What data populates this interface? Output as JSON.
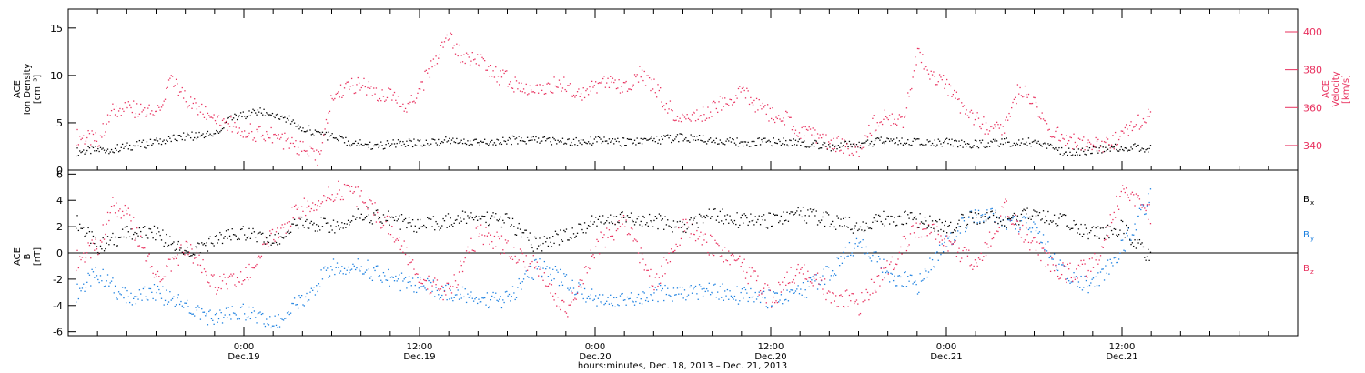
{
  "colors": {
    "black": "#000000",
    "red": "#e8305e",
    "blue": "#1a7fe0"
  },
  "chart_data": [
    {
      "type": "scatter",
      "panel": "top",
      "left_axis": {
        "title_lines": [
          "ACE",
          "Ion Density",
          "[cm⁻³]"
        ],
        "ylim": [
          0,
          17
        ],
        "ticks": [
          0,
          5,
          10,
          15
        ]
      },
      "right_axis": {
        "title_lines": [
          "ACE",
          "Velocity",
          "[km/s]"
        ],
        "ylim": [
          327,
          412
        ],
        "ticks": [
          340,
          360,
          380,
          400
        ],
        "color": "#e8305e"
      },
      "series": [
        {
          "color": "#000000",
          "axis": "left",
          "x": [
            -11.5,
            -9,
            -6,
            -4,
            -2,
            -1,
            0,
            1,
            2,
            3,
            4,
            5,
            6,
            7,
            8,
            9,
            10,
            12,
            14,
            16,
            18,
            20,
            22,
            24,
            26,
            28,
            30,
            32,
            34,
            36,
            38,
            40,
            42,
            44,
            46,
            48,
            50,
            52,
            54,
            56,
            58,
            60,
            62
          ],
          "y": [
            2.0,
            2.3,
            3.0,
            3.6,
            3.8,
            5.5,
            5.8,
            6.2,
            6.0,
            5.5,
            4.5,
            4.0,
            3.5,
            3.0,
            2.8,
            2.6,
            2.8,
            3.0,
            3.2,
            3.0,
            3.2,
            3.3,
            3.0,
            3.2,
            3.0,
            3.2,
            3.5,
            3.2,
            3.0,
            3.0,
            3.0,
            2.5,
            2.8,
            3.2,
            3.0,
            3.0,
            2.8,
            3.0,
            3.0,
            2.0,
            2.2,
            2.5,
            2.4
          ]
        },
        {
          "color": "#e8305e",
          "axis": "right",
          "x": [
            -11.5,
            -10,
            -9,
            -8,
            -6,
            -5,
            -4,
            -3,
            -2,
            -1,
            0,
            2,
            4,
            5,
            6,
            7,
            8,
            9,
            10,
            11,
            12,
            13,
            14,
            15,
            16,
            17,
            18,
            19,
            20,
            21,
            22,
            23,
            24,
            25,
            26,
            27,
            28,
            29,
            30,
            31,
            32,
            33,
            34,
            35,
            36,
            37,
            38,
            39,
            40,
            41,
            42,
            43,
            44,
            45,
            46,
            47,
            48,
            49,
            50,
            51,
            52,
            53,
            54,
            55,
            56,
            57,
            58,
            59,
            60,
            61,
            62
          ],
          "y": [
            345,
            343,
            358,
            360,
            357,
            375,
            364,
            358,
            356,
            352,
            348,
            345,
            338,
            333,
            365,
            372,
            372,
            368,
            368,
            360,
            370,
            385,
            398,
            385,
            386,
            378,
            375,
            370,
            372,
            372,
            372,
            368,
            372,
            375,
            370,
            378,
            372,
            360,
            354,
            356,
            360,
            365,
            368,
            362,
            356,
            355,
            348,
            345,
            342,
            340,
            338,
            352,
            356,
            352,
            390,
            376,
            372,
            360,
            354,
            348,
            350,
            372,
            362,
            350,
            342,
            343,
            340,
            340,
            346,
            352,
            356
          ]
        }
      ]
    },
    {
      "type": "scatter",
      "panel": "bottom",
      "left_axis": {
        "title_lines": [
          "ACE",
          "B",
          "[nT]"
        ],
        "ylim": [
          -6.3,
          6.3
        ],
        "ticks": [
          -6,
          -4,
          -2,
          0,
          2,
          4,
          6
        ]
      },
      "series": [
        {
          "name": "Bx",
          "color": "#000000",
          "x": [
            -11.5,
            -10,
            -8,
            -6,
            -4,
            -2,
            0,
            2,
            4,
            6,
            8,
            10,
            12,
            14,
            16,
            18,
            20,
            22,
            24,
            26,
            28,
            30,
            32,
            34,
            36,
            38,
            40,
            42,
            44,
            46,
            48,
            50,
            52,
            54,
            56,
            58,
            60,
            62
          ],
          "y": [
            2.5,
            0.5,
            1.5,
            1.5,
            0.0,
            1.0,
            1.5,
            0.8,
            2.5,
            2.0,
            3.0,
            2.6,
            2.0,
            2.5,
            2.8,
            2.5,
            0.5,
            1.5,
            2.5,
            2.8,
            2.5,
            2.0,
            3.0,
            2.5,
            2.5,
            3.0,
            2.5,
            2.0,
            2.8,
            2.5,
            2.0,
            2.8,
            2.5,
            3.0,
            2.5,
            1.5,
            2.0,
            -0.5
          ]
        },
        {
          "name": "By",
          "color": "#1a7fe0",
          "x": [
            -11.5,
            -10,
            -8,
            -6,
            -4,
            -2,
            0,
            2,
            4,
            6,
            8,
            10,
            12,
            14,
            16,
            18,
            20,
            22,
            24,
            26,
            28,
            30,
            32,
            34,
            36,
            38,
            40,
            42,
            44,
            46,
            48,
            50,
            52,
            54,
            56,
            58,
            60,
            62
          ],
          "y": [
            -3.0,
            -1.5,
            -3.5,
            -3.0,
            -4.0,
            -5.0,
            -4.5,
            -5.5,
            -3.5,
            -1.0,
            -1.0,
            -2.0,
            -2.5,
            -3.0,
            -3.5,
            -3.5,
            -1.0,
            -2.0,
            -3.5,
            -3.5,
            -3.0,
            -3.0,
            -2.8,
            -3.2,
            -3.5,
            -3.0,
            -1.5,
            1.0,
            -1.5,
            -2.5,
            1.0,
            3.0,
            2.5,
            2.0,
            -1.5,
            -2.5,
            0.5,
            4.5
          ]
        },
        {
          "name": "Bz",
          "color": "#e8305e",
          "x": [
            -11.5,
            -10,
            -9,
            -8,
            -6,
            -4,
            -2,
            0,
            2,
            4,
            6,
            7,
            8,
            10,
            12,
            14,
            16,
            18,
            20,
            22,
            24,
            26,
            28,
            30,
            32,
            34,
            36,
            38,
            40,
            42,
            44,
            46,
            48,
            50,
            52,
            54,
            56,
            58,
            60,
            62
          ],
          "y": [
            -0.5,
            0.5,
            3.5,
            3.0,
            -2.0,
            0.5,
            -2.5,
            -2.0,
            1.5,
            3.5,
            4.5,
            5.0,
            4.0,
            2.0,
            -2.0,
            -3.0,
            1.5,
            0.5,
            -1.0,
            -4.5,
            0.5,
            2.5,
            -2.5,
            2.0,
            0.5,
            -1.0,
            -3.5,
            -1.0,
            -3.0,
            -4.0,
            -1.0,
            2.0,
            1.0,
            -1.0,
            3.5,
            0.5,
            -1.5,
            -1.0,
            4.8,
            3.0
          ]
        }
      ],
      "legend": [
        "B",
        "B",
        "B"
      ],
      "legend_subscripts": [
        "x",
        "y",
        "z"
      ]
    }
  ],
  "x_axis": {
    "xlim": [
      -12,
      72
    ],
    "major_ticks": [
      0,
      12,
      24,
      36,
      48,
      60
    ],
    "labels": [
      {
        "at": 0,
        "time": "0:00",
        "date": "Dec.19"
      },
      {
        "at": 12,
        "time": "12:00",
        "date": "Dec.19"
      },
      {
        "at": 24,
        "time": "0:00",
        "date": "Dec.20"
      },
      {
        "at": 36,
        "time": "12:00",
        "date": "Dec.20"
      },
      {
        "at": 48,
        "time": "0:00",
        "date": "Dec.21"
      },
      {
        "at": 60,
        "time": "12:00",
        "date": "Dec.21"
      }
    ],
    "title": "hours:minutes, Dec. 18, 2013 – Dec. 21, 2013"
  }
}
